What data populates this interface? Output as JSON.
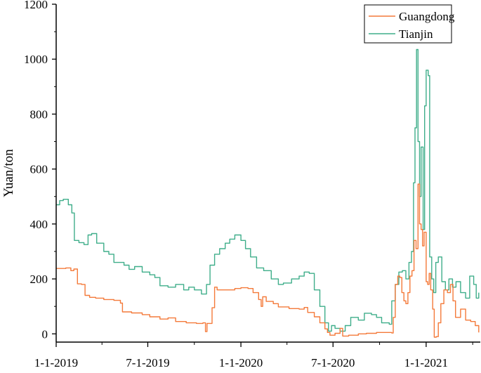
{
  "chart_data": {
    "type": "line",
    "title": "",
    "xlabel": "",
    "ylabel": "Yuan/ton",
    "xlim": [
      "2019-01-01",
      "2021-04-18"
    ],
    "ylim": [
      -30,
      1200
    ],
    "x_ticks": [
      {
        "date": "2019-01-01",
        "label": "1-1-2019"
      },
      {
        "date": "2019-07-01",
        "label": "7-1-2019"
      },
      {
        "date": "2020-01-01",
        "label": "1-1-2020"
      },
      {
        "date": "2020-07-01",
        "label": "7-1-2020"
      },
      {
        "date": "2021-01-01",
        "label": "1-1-2021"
      }
    ],
    "y_ticks": [
      0,
      200,
      400,
      600,
      800,
      1000,
      1200
    ],
    "grid": false,
    "legend_position": "top-right",
    "series": [
      {
        "name": "Guangdong",
        "color": "#f47a3a",
        "points": [
          [
            "2019-01-01",
            238
          ],
          [
            "2019-01-20",
            240
          ],
          [
            "2019-01-30",
            230
          ],
          [
            "2019-02-05",
            236
          ],
          [
            "2019-02-12",
            182
          ],
          [
            "2019-02-20",
            180
          ],
          [
            "2019-02-27",
            140
          ],
          [
            "2019-03-08",
            133
          ],
          [
            "2019-03-20",
            130
          ],
          [
            "2019-04-05",
            125
          ],
          [
            "2019-04-25",
            122
          ],
          [
            "2019-05-08",
            112
          ],
          [
            "2019-05-12",
            80
          ],
          [
            "2019-05-30",
            76
          ],
          [
            "2019-06-20",
            70
          ],
          [
            "2019-07-05",
            62
          ],
          [
            "2019-07-25",
            54
          ],
          [
            "2019-08-10",
            58
          ],
          [
            "2019-08-25",
            45
          ],
          [
            "2019-09-15",
            40
          ],
          [
            "2019-10-05",
            38
          ],
          [
            "2019-10-18",
            40
          ],
          [
            "2019-10-23",
            8
          ],
          [
            "2019-10-26",
            38
          ],
          [
            "2019-11-05",
            95
          ],
          [
            "2019-11-10",
            170
          ],
          [
            "2019-11-15",
            160
          ],
          [
            "2019-12-01",
            160
          ],
          [
            "2019-12-20",
            165
          ],
          [
            "2020-01-01",
            168
          ],
          [
            "2020-01-15",
            165
          ],
          [
            "2020-01-25",
            150
          ],
          [
            "2020-02-05",
            125
          ],
          [
            "2020-02-10",
            100
          ],
          [
            "2020-02-13",
            135
          ],
          [
            "2020-02-20",
            118
          ],
          [
            "2020-03-05",
            110
          ],
          [
            "2020-03-15",
            98
          ],
          [
            "2020-04-05",
            92
          ],
          [
            "2020-04-25",
            90
          ],
          [
            "2020-05-05",
            96
          ],
          [
            "2020-05-12",
            78
          ],
          [
            "2020-05-25",
            62
          ],
          [
            "2020-06-05",
            40
          ],
          [
            "2020-06-15",
            18
          ],
          [
            "2020-06-20",
            5
          ],
          [
            "2020-06-25",
            -5
          ],
          [
            "2020-07-05",
            2
          ],
          [
            "2020-07-15",
            20
          ],
          [
            "2020-07-20",
            -8
          ],
          [
            "2020-08-01",
            -5
          ],
          [
            "2020-08-20",
            0
          ],
          [
            "2020-09-05",
            2
          ],
          [
            "2020-09-25",
            5
          ],
          [
            "2020-10-15",
            5
          ],
          [
            "2020-10-25",
            3
          ],
          [
            "2020-10-28",
            60
          ],
          [
            "2020-11-01",
            180
          ],
          [
            "2020-11-06",
            210
          ],
          [
            "2020-11-10",
            205
          ],
          [
            "2020-11-14",
            150
          ],
          [
            "2020-11-18",
            120
          ],
          [
            "2020-11-22",
            110
          ],
          [
            "2020-11-26",
            150
          ],
          [
            "2020-11-30",
            210
          ],
          [
            "2020-12-04",
            230
          ],
          [
            "2020-12-08",
            340
          ],
          [
            "2020-12-12",
            310
          ],
          [
            "2020-12-16",
            545
          ],
          [
            "2020-12-19",
            400
          ],
          [
            "2020-12-22",
            380
          ],
          [
            "2020-12-25",
            320
          ],
          [
            "2020-12-28",
            370
          ],
          [
            "2021-01-01",
            190
          ],
          [
            "2021-01-04",
            180
          ],
          [
            "2021-01-07",
            220
          ],
          [
            "2021-01-10",
            160
          ],
          [
            "2021-01-14",
            90
          ],
          [
            "2021-01-17",
            -12
          ],
          [
            "2021-01-21",
            -10
          ],
          [
            "2021-01-25",
            40
          ],
          [
            "2021-01-30",
            110
          ],
          [
            "2021-02-05",
            160
          ],
          [
            "2021-02-12",
            150
          ],
          [
            "2021-02-18",
            180
          ],
          [
            "2021-02-23",
            120
          ],
          [
            "2021-02-28",
            60
          ],
          [
            "2021-03-10",
            90
          ],
          [
            "2021-03-20",
            50
          ],
          [
            "2021-03-30",
            45
          ],
          [
            "2021-04-08",
            30
          ],
          [
            "2021-04-15",
            5
          ]
        ]
      },
      {
        "name": "Tianjin",
        "color": "#3fae8a",
        "points": [
          [
            "2019-01-01",
            470
          ],
          [
            "2019-01-08",
            485
          ],
          [
            "2019-01-15",
            490
          ],
          [
            "2019-01-25",
            470
          ],
          [
            "2019-02-01",
            440
          ],
          [
            "2019-02-06",
            340
          ],
          [
            "2019-02-15",
            332
          ],
          [
            "2019-02-25",
            325
          ],
          [
            "2019-03-05",
            360
          ],
          [
            "2019-03-12",
            365
          ],
          [
            "2019-03-22",
            330
          ],
          [
            "2019-04-05",
            300
          ],
          [
            "2019-04-15",
            290
          ],
          [
            "2019-04-25",
            260
          ],
          [
            "2019-05-15",
            250
          ],
          [
            "2019-05-25",
            235
          ],
          [
            "2019-06-05",
            245
          ],
          [
            "2019-06-20",
            225
          ],
          [
            "2019-07-05",
            215
          ],
          [
            "2019-07-15",
            205
          ],
          [
            "2019-07-25",
            175
          ],
          [
            "2019-08-10",
            170
          ],
          [
            "2019-08-25",
            180
          ],
          [
            "2019-09-10",
            160
          ],
          [
            "2019-09-20",
            170
          ],
          [
            "2019-10-01",
            160
          ],
          [
            "2019-10-15",
            145
          ],
          [
            "2019-10-25",
            180
          ],
          [
            "2019-11-01",
            250
          ],
          [
            "2019-11-10",
            290
          ],
          [
            "2019-11-20",
            310
          ],
          [
            "2019-12-01",
            330
          ],
          [
            "2019-12-10",
            345
          ],
          [
            "2019-12-20",
            360
          ],
          [
            "2020-01-01",
            340
          ],
          [
            "2020-01-10",
            310
          ],
          [
            "2020-01-20",
            280
          ],
          [
            "2020-02-01",
            240
          ],
          [
            "2020-02-15",
            230
          ],
          [
            "2020-03-01",
            200
          ],
          [
            "2020-03-15",
            180
          ],
          [
            "2020-03-25",
            185
          ],
          [
            "2020-04-10",
            200
          ],
          [
            "2020-04-25",
            210
          ],
          [
            "2020-05-05",
            225
          ],
          [
            "2020-05-15",
            220
          ],
          [
            "2020-05-25",
            160
          ],
          [
            "2020-06-05",
            100
          ],
          [
            "2020-06-15",
            40
          ],
          [
            "2020-06-22",
            10
          ],
          [
            "2020-06-28",
            30
          ],
          [
            "2020-07-05",
            20
          ],
          [
            "2020-07-15",
            10
          ],
          [
            "2020-07-25",
            30
          ],
          [
            "2020-08-05",
            60
          ],
          [
            "2020-08-20",
            50
          ],
          [
            "2020-09-01",
            75
          ],
          [
            "2020-09-15",
            70
          ],
          [
            "2020-09-25",
            60
          ],
          [
            "2020-10-05",
            40
          ],
          [
            "2020-10-20",
            35
          ],
          [
            "2020-10-25",
            120
          ],
          [
            "2020-11-01",
            180
          ],
          [
            "2020-11-08",
            225
          ],
          [
            "2020-11-15",
            230
          ],
          [
            "2020-11-22",
            200
          ],
          [
            "2020-11-28",
            260
          ],
          [
            "2020-12-03",
            300
          ],
          [
            "2020-12-07",
            550
          ],
          [
            "2020-12-10",
            750
          ],
          [
            "2020-12-13",
            1035
          ],
          [
            "2020-12-16",
            700
          ],
          [
            "2020-12-19",
            500
          ],
          [
            "2020-12-22",
            680
          ],
          [
            "2020-12-26",
            380
          ],
          [
            "2020-12-29",
            830
          ],
          [
            "2021-01-01",
            960
          ],
          [
            "2021-01-05",
            940
          ],
          [
            "2021-01-08",
            280
          ],
          [
            "2021-01-12",
            200
          ],
          [
            "2021-01-16",
            150
          ],
          [
            "2021-01-20",
            260
          ],
          [
            "2021-01-25",
            280
          ],
          [
            "2021-02-01",
            190
          ],
          [
            "2021-02-08",
            160
          ],
          [
            "2021-02-15",
            200
          ],
          [
            "2021-02-22",
            170
          ],
          [
            "2021-03-01",
            190
          ],
          [
            "2021-03-10",
            150
          ],
          [
            "2021-03-20",
            130
          ],
          [
            "2021-03-28",
            210
          ],
          [
            "2021-04-05",
            180
          ],
          [
            "2021-04-10",
            130
          ],
          [
            "2021-04-15",
            150
          ]
        ]
      }
    ]
  }
}
